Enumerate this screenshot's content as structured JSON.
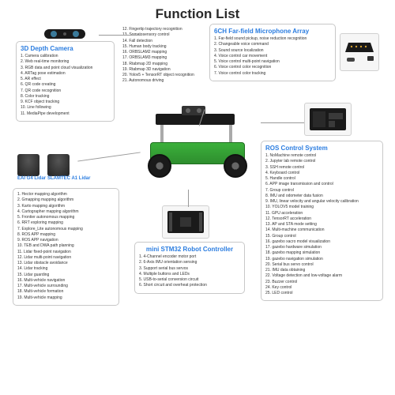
{
  "title": "Function List",
  "colors": {
    "accent": "#2b7de0",
    "border": "#c8c8c8",
    "text": "#333333"
  },
  "boxes": {
    "depth_camera": {
      "title": "3D Depth Camera",
      "items": [
        "Camera calibration",
        "Web real-time monitoring",
        "RGB data and point cloud visualization",
        "ARTag pose estimation",
        "AR effect",
        "QR code creating",
        "QR code recognition",
        "Color tracking",
        "KCF object tracking",
        "Line following",
        "MediaPipe development"
      ]
    },
    "extra": {
      "items": [
        "Fingertip trajectory recognition",
        "Somatosensory control",
        "Fall detection",
        "Human body tracking",
        "ORBSLAM2 mapping",
        "ORBSLAM3 mapping",
        "Rtabmap 2D mapping",
        "Rtabmap 3D navigation",
        "Yolov5 + TensorRT object recognition",
        "Autonomous driving"
      ],
      "startIndex": 12
    },
    "mic_array": {
      "title": "6CH Far-field Microphone Array",
      "items": [
        "Far-field sound pickup, noise reduction recognition",
        "Changeable voice command",
        "Sound source localization",
        "Voice control car movement",
        "Voice control multi-point navigation",
        "Voice control color recognition",
        "Voice control color tracking"
      ]
    },
    "lidar": {
      "title1": "EAI G4 Lidar",
      "title2": "SLAMTEC A1 Lidar",
      "items": [
        "Hector mapping algorithm",
        "Gmapping mapping algorithm",
        "Karto mapping algorithm",
        "Cartographer mapping algorithm",
        "Frontier autonomous mapping",
        "RRT exploring mapping",
        "Explore_Lite autonomous mapping",
        "ROS APP mapping",
        "ROS APP navigation",
        "TEB and DWA path planning",
        "Lidar fixed-point navigation",
        "Lidar multi-point navigation",
        "Lidar obstacle avoidance",
        "Lidar tracking",
        "Lidar guarding",
        "Multi-vehicle navigation",
        "Multi-vehicle surrounding",
        "Multi-vehicle formation",
        "Multi-vehicle mapping"
      ]
    },
    "stm32": {
      "title": "mini STM32 Robot Controller",
      "items": [
        "4-Channel encoder motor port",
        "6-Axis IMU orientation sensing",
        "Support serial bus servos",
        "Multiple buttons and LEDs",
        "USB-to-serial conversion circuit",
        "Short circuit and overheat protection"
      ]
    },
    "ros": {
      "title": "ROS Control System",
      "items": [
        "NoMachine remote control",
        "Jupyter lab remote control",
        "SSH remote control",
        "Keyboard control",
        "Handle control",
        "APP image transmission and control",
        "Group control",
        "IMU and odometer data fusion",
        "IMU, linear velocity and angular velocity calibration",
        "YOLOV5 model training",
        "GPU acceleration",
        "TensorRT acceleration",
        "AP and STA mode setting",
        "Multi-machine communication",
        "Group control",
        "gazebo xacro model visualization",
        "gazebo hardware simulation",
        "gazebo mapping simulation",
        "gazebo navigation simulation",
        "Serial bus servo control",
        "IMU data obtaining",
        "Voltage detection and low-voltage alarm",
        "Buzzer control",
        "Key control",
        "LED control"
      ]
    }
  }
}
